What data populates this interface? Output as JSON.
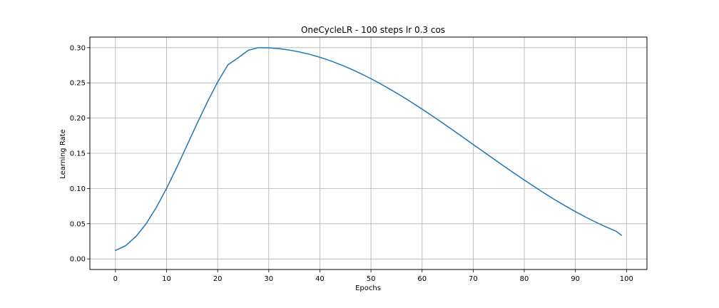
{
  "chart_data": {
    "type": "line",
    "title": "OneCycleLR - 100 steps lr 0.3 cos",
    "xlabel": "Epochs",
    "ylabel": "Learning Rate",
    "xlim": [
      -5,
      104
    ],
    "ylim": [
      -0.015,
      0.315
    ],
    "xticks": [
      0,
      10,
      20,
      30,
      40,
      50,
      60,
      70,
      80,
      90,
      100
    ],
    "yticks": [
      0.0,
      0.05,
      0.1,
      0.15,
      0.2,
      0.25,
      0.3
    ],
    "xtick_labels": [
      "0",
      "10",
      "20",
      "30",
      "40",
      "50",
      "60",
      "70",
      "80",
      "90",
      "100"
    ],
    "ytick_labels": [
      "0.00",
      "0.05",
      "0.10",
      "0.15",
      "0.20",
      "0.25",
      "0.30"
    ],
    "grid": true,
    "colors": {
      "line": "#1f77b4",
      "grid": "#b0b0b0",
      "axes": "#000000"
    },
    "series": [
      {
        "x": [
          0,
          2,
          4,
          6,
          8,
          10,
          12,
          14,
          16,
          18,
          20,
          22,
          24,
          26,
          28,
          30,
          32,
          34,
          36,
          38,
          40,
          42,
          44,
          46,
          48,
          50,
          52,
          54,
          56,
          58,
          60,
          62,
          64,
          66,
          68,
          70,
          72,
          74,
          76,
          78,
          80,
          82,
          84,
          86,
          88,
          90,
          92,
          94,
          96,
          98,
          99
        ],
        "values": [
          0.012,
          0.0188,
          0.0317,
          0.0499,
          0.0731,
          0.1002,
          0.1299,
          0.1612,
          0.1927,
          0.223,
          0.2511,
          0.2755,
          0.2855,
          0.2963,
          0.3,
          0.2997,
          0.2985,
          0.2966,
          0.2939,
          0.2905,
          0.2863,
          0.2815,
          0.276,
          0.2699,
          0.2632,
          0.2559,
          0.2481,
          0.2398,
          0.2312,
          0.2221,
          0.2127,
          0.203,
          0.1931,
          0.183,
          0.1728,
          0.1625,
          0.1523,
          0.142,
          0.1318,
          0.1218,
          0.112,
          0.1024,
          0.093,
          0.084,
          0.0754,
          0.0672,
          0.0594,
          0.0522,
          0.0454,
          0.0392,
          0.0336
        ]
      }
    ]
  }
}
